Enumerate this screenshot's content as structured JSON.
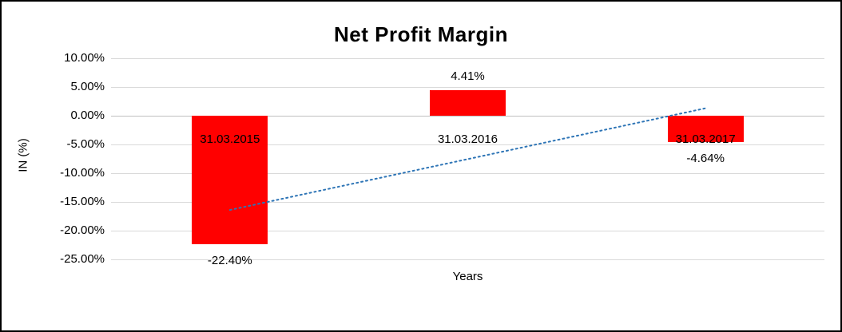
{
  "chart_data": {
    "type": "bar",
    "title": "Net Profit Margin",
    "xlabel": "Years",
    "ylabel": "IN (%)",
    "categories": [
      "31.03.2015",
      "31.03.2016",
      "31.03.2017"
    ],
    "values": [
      -22.4,
      4.41,
      -4.64
    ],
    "data_labels": [
      "-22.40%",
      "4.41%",
      "-4.64%"
    ],
    "bar_color": "#FF0000",
    "ylim": [
      -25,
      10
    ],
    "yticks": [
      10,
      5,
      0,
      -5,
      -10,
      -15,
      -20,
      -25
    ],
    "ytick_labels": [
      "10.00%",
      "5.00%",
      "0.00%",
      "-5.00%",
      "-10.00%",
      "-15.00%",
      "-20.00%",
      "-25.00%"
    ],
    "grid": true,
    "legend": "none",
    "trendline": {
      "type": "linear",
      "style": "dotted",
      "color": "#2E75B6",
      "start_value": -16.4,
      "end_value": 1.3
    }
  }
}
